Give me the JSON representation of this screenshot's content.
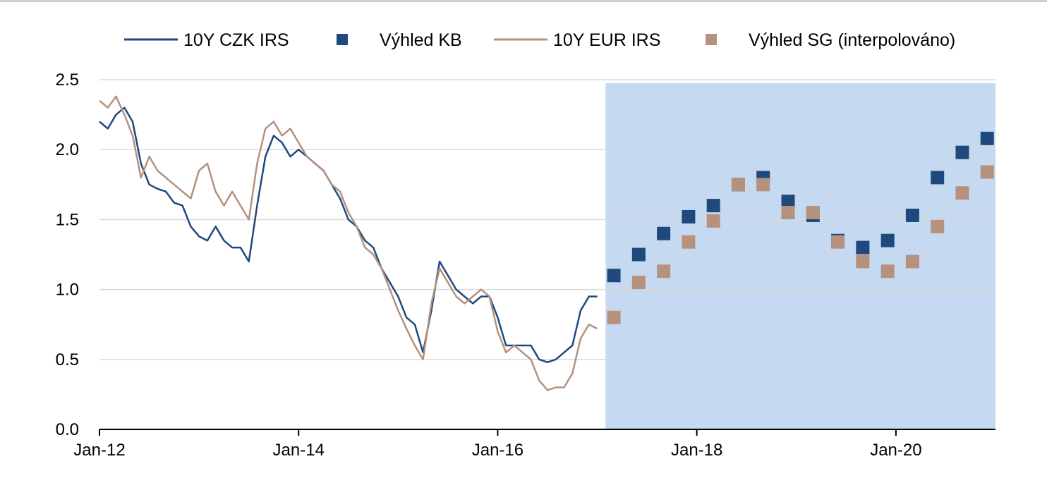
{
  "chart_data": {
    "type": "line",
    "title": "",
    "xlabel": "",
    "ylabel": "",
    "ylim": [
      0,
      2.5
    ],
    "xlim": [
      "2012-01",
      "2021-01"
    ],
    "y_ticks": [
      "0.0",
      "0.5",
      "1.0",
      "1.5",
      "2.0",
      "2.5"
    ],
    "x_ticks": [
      {
        "date": "2012-01",
        "label": "Jan-12"
      },
      {
        "date": "2014-01",
        "label": "Jan-14"
      },
      {
        "date": "2016-01",
        "label": "Jan-16"
      },
      {
        "date": "2018-01",
        "label": "Jan-18"
      },
      {
        "date": "2020-01",
        "label": "Jan-20"
      }
    ],
    "grid": true,
    "legend_position": "top",
    "forecast_region": {
      "start": "2017-02",
      "end": "2021-01",
      "color": "#c5d9f1"
    },
    "series": [
      {
        "name": "10Y CZK IRS",
        "kind": "line",
        "color": "#1f497d",
        "points": [
          [
            "2012-01",
            2.2
          ],
          [
            "2012-02",
            2.15
          ],
          [
            "2012-03",
            2.25
          ],
          [
            "2012-04",
            2.3
          ],
          [
            "2012-05",
            2.2
          ],
          [
            "2012-06",
            1.9
          ],
          [
            "2012-07",
            1.75
          ],
          [
            "2012-08",
            1.72
          ],
          [
            "2012-09",
            1.7
          ],
          [
            "2012-10",
            1.62
          ],
          [
            "2012-11",
            1.6
          ],
          [
            "2012-12",
            1.45
          ],
          [
            "2013-01",
            1.38
          ],
          [
            "2013-02",
            1.35
          ],
          [
            "2013-03",
            1.45
          ],
          [
            "2013-04",
            1.35
          ],
          [
            "2013-05",
            1.3
          ],
          [
            "2013-06",
            1.3
          ],
          [
            "2013-07",
            1.2
          ],
          [
            "2013-08",
            1.6
          ],
          [
            "2013-09",
            1.95
          ],
          [
            "2013-10",
            2.1
          ],
          [
            "2013-11",
            2.05
          ],
          [
            "2013-12",
            1.95
          ],
          [
            "2014-01",
            2.0
          ],
          [
            "2014-02",
            1.95
          ],
          [
            "2014-03",
            1.9
          ],
          [
            "2014-04",
            1.85
          ],
          [
            "2014-05",
            1.75
          ],
          [
            "2014-06",
            1.65
          ],
          [
            "2014-07",
            1.5
          ],
          [
            "2014-08",
            1.45
          ],
          [
            "2014-09",
            1.35
          ],
          [
            "2014-10",
            1.3
          ],
          [
            "2014-11",
            1.15
          ],
          [
            "2014-12",
            1.05
          ],
          [
            "2015-01",
            0.95
          ],
          [
            "2015-02",
            0.8
          ],
          [
            "2015-03",
            0.75
          ],
          [
            "2015-04",
            0.55
          ],
          [
            "2015-05",
            0.85
          ],
          [
            "2015-06",
            1.2
          ],
          [
            "2015-07",
            1.1
          ],
          [
            "2015-08",
            1.0
          ],
          [
            "2015-09",
            0.95
          ],
          [
            "2015-10",
            0.9
          ],
          [
            "2015-11",
            0.95
          ],
          [
            "2015-12",
            0.95
          ],
          [
            "2016-01",
            0.8
          ],
          [
            "2016-02",
            0.6
          ],
          [
            "2016-03",
            0.6
          ],
          [
            "2016-04",
            0.6
          ],
          [
            "2016-05",
            0.6
          ],
          [
            "2016-06",
            0.5
          ],
          [
            "2016-07",
            0.48
          ],
          [
            "2016-08",
            0.5
          ],
          [
            "2016-09",
            0.55
          ],
          [
            "2016-10",
            0.6
          ],
          [
            "2016-11",
            0.85
          ],
          [
            "2016-12",
            0.95
          ],
          [
            "2017-01",
            0.95
          ]
        ]
      },
      {
        "name": "Výhled KB",
        "kind": "markers",
        "color": "#1f497d",
        "points": [
          [
            "2017-03",
            1.1
          ],
          [
            "2017-06",
            1.25
          ],
          [
            "2017-09",
            1.4
          ],
          [
            "2017-12",
            1.52
          ],
          [
            "2018-03",
            1.6
          ],
          [
            "2018-06",
            1.75
          ],
          [
            "2018-09",
            1.8
          ],
          [
            "2018-12",
            1.63
          ],
          [
            "2019-03",
            1.53
          ],
          [
            "2019-06",
            1.35
          ],
          [
            "2019-09",
            1.3
          ],
          [
            "2019-12",
            1.35
          ],
          [
            "2020-03",
            1.53
          ],
          [
            "2020-06",
            1.8
          ],
          [
            "2020-09",
            1.98
          ],
          [
            "2020-12",
            2.08
          ]
        ]
      },
      {
        "name": "10Y EUR IRS",
        "kind": "line",
        "color": "#b5917e",
        "points": [
          [
            "2012-01",
            2.35
          ],
          [
            "2012-02",
            2.3
          ],
          [
            "2012-03",
            2.38
          ],
          [
            "2012-04",
            2.25
          ],
          [
            "2012-05",
            2.1
          ],
          [
            "2012-06",
            1.8
          ],
          [
            "2012-07",
            1.95
          ],
          [
            "2012-08",
            1.85
          ],
          [
            "2012-09",
            1.8
          ],
          [
            "2012-10",
            1.75
          ],
          [
            "2012-11",
            1.7
          ],
          [
            "2012-12",
            1.65
          ],
          [
            "2013-01",
            1.85
          ],
          [
            "2013-02",
            1.9
          ],
          [
            "2013-03",
            1.7
          ],
          [
            "2013-04",
            1.6
          ],
          [
            "2013-05",
            1.7
          ],
          [
            "2013-06",
            1.6
          ],
          [
            "2013-07",
            1.5
          ],
          [
            "2013-08",
            1.9
          ],
          [
            "2013-09",
            2.15
          ],
          [
            "2013-10",
            2.2
          ],
          [
            "2013-11",
            2.1
          ],
          [
            "2013-12",
            2.15
          ],
          [
            "2014-01",
            2.05
          ],
          [
            "2014-02",
            1.95
          ],
          [
            "2014-03",
            1.9
          ],
          [
            "2014-04",
            1.85
          ],
          [
            "2014-05",
            1.75
          ],
          [
            "2014-06",
            1.7
          ],
          [
            "2014-07",
            1.55
          ],
          [
            "2014-08",
            1.45
          ],
          [
            "2014-09",
            1.3
          ],
          [
            "2014-10",
            1.25
          ],
          [
            "2014-11",
            1.15
          ],
          [
            "2014-12",
            1.0
          ],
          [
            "2015-01",
            0.85
          ],
          [
            "2015-02",
            0.72
          ],
          [
            "2015-03",
            0.6
          ],
          [
            "2015-04",
            0.5
          ],
          [
            "2015-05",
            0.9
          ],
          [
            "2015-06",
            1.15
          ],
          [
            "2015-07",
            1.05
          ],
          [
            "2015-08",
            0.95
          ],
          [
            "2015-09",
            0.9
          ],
          [
            "2015-10",
            0.95
          ],
          [
            "2015-11",
            1.0
          ],
          [
            "2015-12",
            0.95
          ],
          [
            "2016-01",
            0.7
          ],
          [
            "2016-02",
            0.55
          ],
          [
            "2016-03",
            0.6
          ],
          [
            "2016-04",
            0.55
          ],
          [
            "2016-05",
            0.5
          ],
          [
            "2016-06",
            0.35
          ],
          [
            "2016-07",
            0.28
          ],
          [
            "2016-08",
            0.3
          ],
          [
            "2016-09",
            0.3
          ],
          [
            "2016-10",
            0.4
          ],
          [
            "2016-11",
            0.65
          ],
          [
            "2016-12",
            0.75
          ],
          [
            "2017-01",
            0.72
          ]
        ]
      },
      {
        "name": "Výhled SG (interpolováno)",
        "kind": "markers",
        "color": "#b5917e",
        "points": [
          [
            "2017-03",
            0.8
          ],
          [
            "2017-06",
            1.05
          ],
          [
            "2017-09",
            1.13
          ],
          [
            "2017-12",
            1.34
          ],
          [
            "2018-03",
            1.49
          ],
          [
            "2018-06",
            1.75
          ],
          [
            "2018-09",
            1.75
          ],
          [
            "2018-12",
            1.55
          ],
          [
            "2019-03",
            1.55
          ],
          [
            "2019-06",
            1.34
          ],
          [
            "2019-09",
            1.2
          ],
          [
            "2019-12",
            1.13
          ],
          [
            "2020-03",
            1.2
          ],
          [
            "2020-06",
            1.45
          ],
          [
            "2020-09",
            1.69
          ],
          [
            "2020-12",
            1.84
          ]
        ]
      }
    ]
  }
}
